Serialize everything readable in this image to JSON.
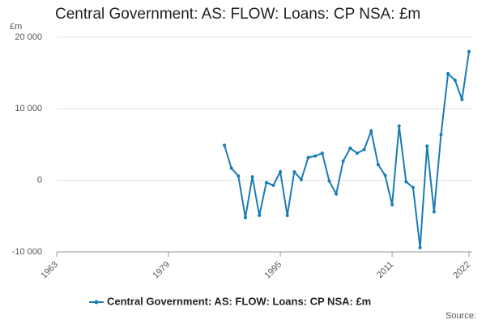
{
  "chart_data": {
    "type": "line",
    "title": "Central Government: AS: FLOW: Loans: CP NSA: £m",
    "y_label": "£m",
    "source": "Source:",
    "x": [
      1987,
      1988,
      1989,
      1990,
      1991,
      1992,
      1993,
      1994,
      1995,
      1996,
      1997,
      1998,
      1999,
      2000,
      2001,
      2002,
      2003,
      2004,
      2005,
      2006,
      2007,
      2008,
      2009,
      2010,
      2011,
      2012,
      2013,
      2014,
      2015,
      2016,
      2017,
      2018,
      2019,
      2020,
      2021,
      2022
    ],
    "series": [
      {
        "name": "Central Government: AS: FLOW: Loans: CP NSA: £m",
        "color": "#1a7bb5",
        "values": [
          4900,
          1700,
          600,
          -5200,
          500,
          -4900,
          -300,
          -700,
          1200,
          -4900,
          1200,
          100,
          3200,
          3400,
          3800,
          -100,
          -1900,
          2700,
          4500,
          3800,
          4300,
          6900,
          2200,
          700,
          -3400,
          7600,
          -200,
          -1000,
          -9400,
          4800,
          -4400,
          6400,
          14900,
          14000,
          11300,
          18000
        ]
      }
    ],
    "xlim": [
      1963,
      2022
    ],
    "xticks": [
      1963,
      1979,
      1995,
      2011,
      2022
    ],
    "ylim": [
      -10000,
      20000
    ],
    "yticks": [
      {
        "value": -10000,
        "label": "-10 000"
      },
      0,
      {
        "value": 10000,
        "label": "10 000"
      },
      {
        "value": 20000,
        "label": "20 000"
      }
    ],
    "grid": true
  }
}
